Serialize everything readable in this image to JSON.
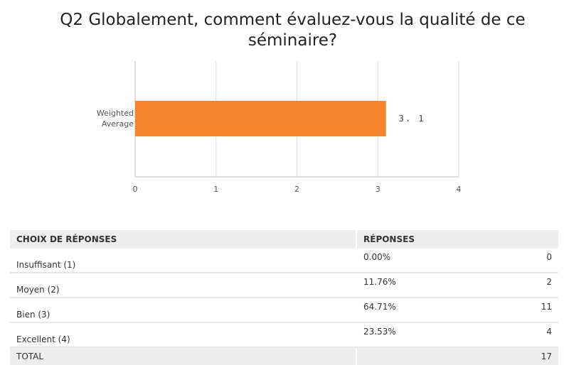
{
  "question": {
    "title_line1": "Q2 Globalement, comment évaluez-vous la qualité de ce",
    "title_line2": "séminaire?"
  },
  "chart_data": {
    "type": "bar",
    "orientation": "horizontal",
    "categories": [
      "Weighted Average"
    ],
    "category_lines": [
      "Weighted",
      "Average"
    ],
    "values": [
      3.1
    ],
    "value_labels": [
      "3. 1"
    ],
    "xlim": [
      0,
      4
    ],
    "xticks": [
      "0",
      "1",
      "2",
      "3",
      "4"
    ],
    "grid": true,
    "bar_color": "#f5842c"
  },
  "table": {
    "headers": [
      "CHOIX DE RÉPONSES",
      "RÉPONSES"
    ],
    "rows": [
      {
        "label": "Insuffisant (1)",
        "percent": "0.00%",
        "count": "0"
      },
      {
        "label": "Moyen (2)",
        "percent": "11.76%",
        "count": "2"
      },
      {
        "label": "Bien (3)",
        "percent": "64.71%",
        "count": "11"
      },
      {
        "label": "Excellent (4)",
        "percent": "23.53%",
        "count": "4"
      }
    ],
    "total_label": "TOTAL",
    "total_count": "17"
  }
}
